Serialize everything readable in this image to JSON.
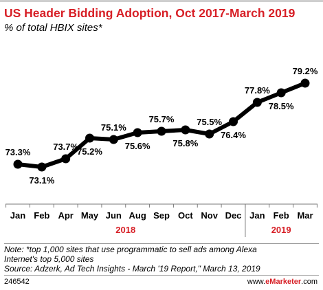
{
  "chart_data": {
    "type": "line",
    "title": "US Header Bidding Adoption, Oct 2017-March 2019",
    "subtitle": "% of total HBIX sites*",
    "categories": [
      "Jan",
      "Feb",
      "Apr",
      "May",
      "Jun",
      "Aug",
      "Sep",
      "Oct",
      "Nov",
      "Dec",
      "Jan",
      "Feb",
      "Mar"
    ],
    "series": [
      {
        "values": [
          73.3,
          73.1,
          73.7,
          75.2,
          75.1,
          75.6,
          75.7,
          75.8,
          75.5,
          76.4,
          77.8,
          78.5,
          79.2
        ],
        "labels": [
          "73.3%",
          "73.1%",
          "73.7%",
          "75.2%",
          "75.1%",
          "75.6%",
          "75.7%",
          "75.8%",
          "75.5%",
          "76.4%",
          "77.8%",
          "78.5%",
          "79.2%"
        ],
        "color": "#000000"
      }
    ],
    "year_groups": [
      {
        "label": "2018",
        "start": 0,
        "end": 9
      },
      {
        "label": "2019",
        "start": 10,
        "end": 12
      }
    ],
    "ylim": [
      72,
      80
    ],
    "grid": false,
    "year_label_color": "#d71f26"
  },
  "header": {
    "title": "US Header Bidding Adoption, Oct 2017-March 2019",
    "subtitle": "% of total HBIX sites*"
  },
  "notes": {
    "line1": "Note: *top 1,000 sites that use programmatic to sell ads among Alexa",
    "line2": "Internet's top 5,000 sites",
    "line3": "Source: Adzerk, Ad Tech Insights - March '19 Report,\" March 13, 2019"
  },
  "footer": {
    "chart_id": "246542",
    "brand_prefix": "www.",
    "brand_name": "eMarketer",
    "brand_suffix": ".com"
  },
  "colors": {
    "title": "#d71f26",
    "line": "#000000",
    "year_labels": "#d71f26"
  }
}
